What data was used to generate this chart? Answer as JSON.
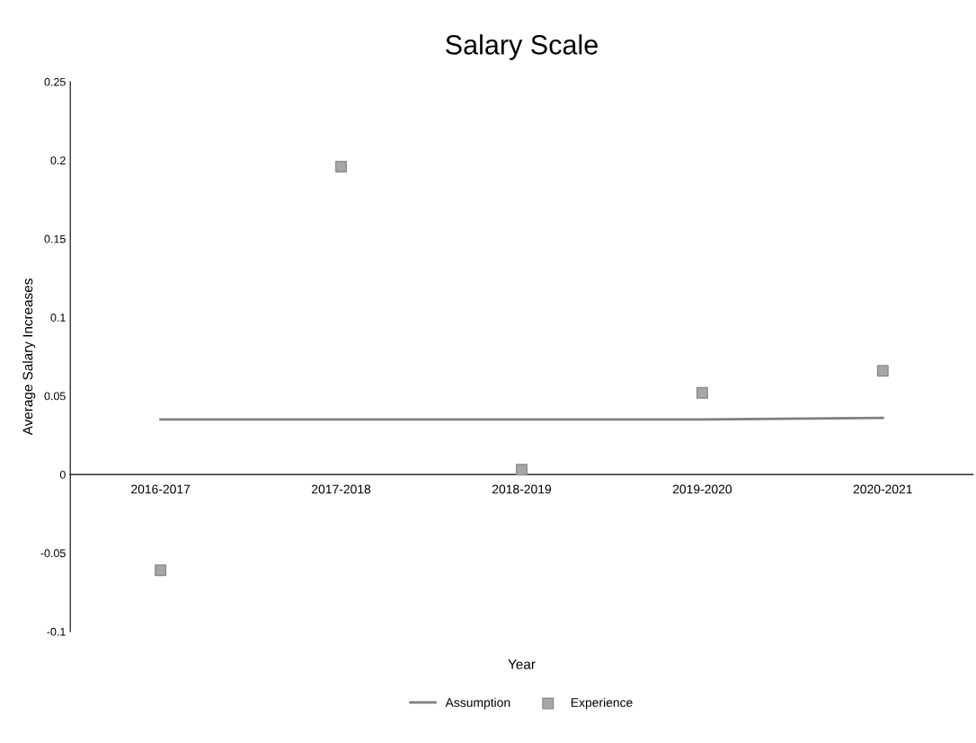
{
  "chart_data": {
    "type": "line",
    "title": "Salary Scale",
    "xlabel": "Year",
    "ylabel": "Average Salary Increases",
    "categories": [
      "2016-2017",
      "2017-2018",
      "2018-2019",
      "2019-2020",
      "2020-2021"
    ],
    "series": [
      {
        "name": "Assumption",
        "color": "#7f7f7f",
        "marker": "none",
        "values": [
          0.035,
          0.035,
          0.035,
          0.035,
          0.036
        ]
      },
      {
        "name": "Experience",
        "type": "scatter",
        "color": "#a6a6a6",
        "marker": "square",
        "values": [
          -0.061,
          0.196,
          0.003,
          0.052,
          0.066
        ]
      }
    ],
    "ylim": [
      -0.1,
      0.25
    ],
    "yticks": [
      -0.1,
      -0.05,
      0,
      0.05,
      0.1,
      0.15,
      0.2,
      0.25
    ],
    "grid": false,
    "legend": "bottom"
  }
}
